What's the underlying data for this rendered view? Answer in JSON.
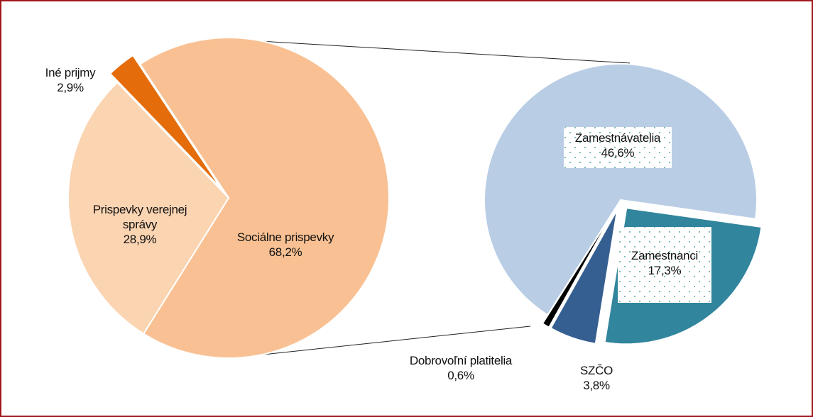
{
  "chart_data": [
    {
      "type": "pie",
      "categories": [
        "Sociálne prispevky",
        "Prispevky verejnej správy",
        "Iné prijmy"
      ],
      "values": [
        68.2,
        28.9,
        2.9
      ],
      "value_labels": [
        "68,2%",
        "28,9%",
        "2,9%"
      ],
      "colors": [
        "#f9c193",
        "#fbd4b2",
        "#e46c0a"
      ]
    },
    {
      "type": "pie",
      "categories": [
        "Zamestnanci",
        "SZČO",
        "Dobrovoľní platitelia",
        "Zamestnávatelia"
      ],
      "values": [
        17.3,
        3.8,
        0.6,
        46.6
      ],
      "value_labels": [
        "17,3%",
        "3,8%",
        "0,6%",
        "46,6%"
      ],
      "colors": [
        "#31859c",
        "#365f91",
        "#000000",
        "#b9cde5"
      ]
    }
  ]
}
